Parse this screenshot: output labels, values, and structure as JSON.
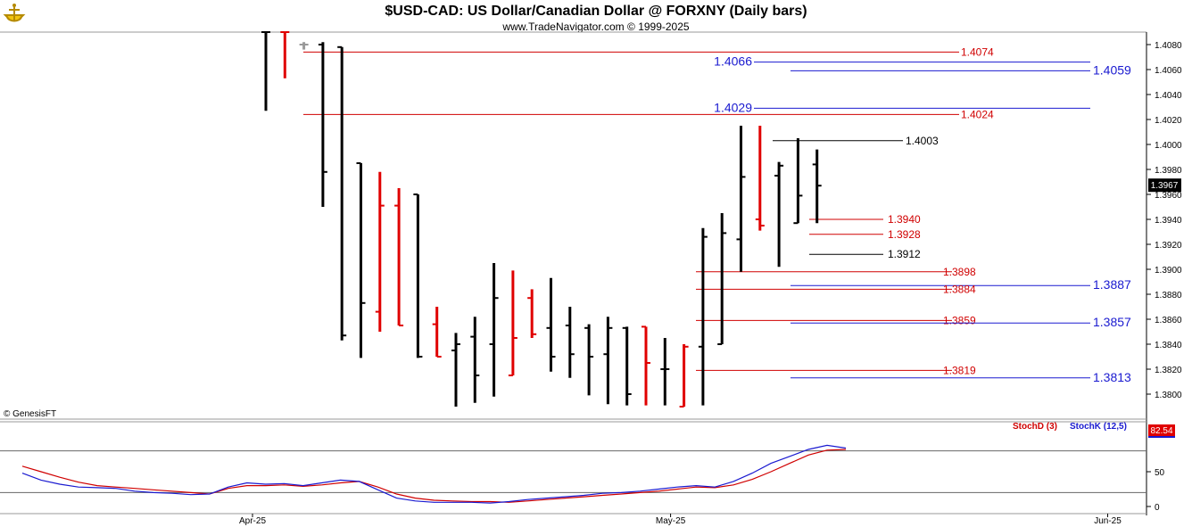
{
  "header": {
    "title": "$USD-CAD:  US Dollar/Canadian Dollar @ FORXNY  (Daily bars)",
    "subtitle": "www.TradeNavigator.com © 1999-2025",
    "logo_icon": "ship-icon"
  },
  "copyright": "© GenesisFT",
  "colors": {
    "up_bar": "#000000",
    "down_bar": "#e00000",
    "red_level": "#d00000",
    "blue_level": "#1a1ad0",
    "stoch_d": "#d00000",
    "stoch_k": "#1a1ad0",
    "price_box": "#000000",
    "stoch_box": "#e00000"
  },
  "chart_data": [
    {
      "type": "ohlc",
      "name": "price",
      "ylim": [
        1.378,
        1.409
      ],
      "y_ticks": [
        "1.4080",
        "1.4060",
        "1.4040",
        "1.4020",
        "1.4000",
        "1.3980",
        "1.3960",
        "1.3940",
        "1.3920",
        "1.3900",
        "1.3880",
        "1.3860",
        "1.3840",
        "1.3820",
        "1.3800"
      ],
      "x_ticks": [
        {
          "label": "Apr-25",
          "bar": 1
        },
        {
          "label": "May-25",
          "bar": 23
        },
        {
          "label": "Jun-25",
          "bar": 46
        }
      ],
      "last_price": "1.3967",
      "bars": [
        {
          "o": 1.41,
          "h": 1.41,
          "l": 1.4027,
          "c": 1.41,
          "color": "up"
        },
        {
          "o": 1.41,
          "h": 1.41,
          "l": 1.4053,
          "c": 1.41,
          "color": "down"
        },
        {
          "o": 1.408,
          "h": 1.4082,
          "l": 1.4076,
          "c": 1.408,
          "color": "gray"
        },
        {
          "o": 1.408,
          "h": 1.4082,
          "l": 1.395,
          "c": 1.3978,
          "color": "up"
        },
        {
          "o": 1.4078,
          "h": 1.4078,
          "l": 1.3843,
          "c": 1.3847,
          "color": "up"
        },
        {
          "o": 1.3985,
          "h": 1.3985,
          "l": 1.3829,
          "c": 1.3873,
          "color": "up"
        },
        {
          "o": 1.3866,
          "h": 1.3978,
          "l": 1.385,
          "c": 1.3951,
          "color": "down"
        },
        {
          "o": 1.3951,
          "h": 1.3965,
          "l": 1.3855,
          "c": 1.3855,
          "color": "down"
        },
        {
          "o": 1.396,
          "h": 1.396,
          "l": 1.3829,
          "c": 1.383,
          "color": "up"
        },
        {
          "o": 1.3856,
          "h": 1.387,
          "l": 1.383,
          "c": 1.383,
          "color": "down"
        },
        {
          "o": 1.3835,
          "h": 1.3849,
          "l": 1.379,
          "c": 1.384,
          "color": "up"
        },
        {
          "o": 1.3846,
          "h": 1.3862,
          "l": 1.3793,
          "c": 1.3815,
          "color": "up"
        },
        {
          "o": 1.384,
          "h": 1.3905,
          "l": 1.3798,
          "c": 1.3877,
          "color": "up"
        },
        {
          "o": 1.3815,
          "h": 1.3899,
          "l": 1.3815,
          "c": 1.3845,
          "color": "down"
        },
        {
          "o": 1.3877,
          "h": 1.3884,
          "l": 1.3845,
          "c": 1.3848,
          "color": "down"
        },
        {
          "o": 1.3853,
          "h": 1.3893,
          "l": 1.3818,
          "c": 1.383,
          "color": "up"
        },
        {
          "o": 1.3855,
          "h": 1.387,
          "l": 1.3813,
          "c": 1.3832,
          "color": "up"
        },
        {
          "o": 1.3853,
          "h": 1.3856,
          "l": 1.3799,
          "c": 1.383,
          "color": "up"
        },
        {
          "o": 1.3832,
          "h": 1.3862,
          "l": 1.3792,
          "c": 1.3853,
          "color": "up"
        },
        {
          "o": 1.3853,
          "h": 1.3854,
          "l": 1.3791,
          "c": 1.38,
          "color": "up"
        },
        {
          "o": 1.3854,
          "h": 1.3854,
          "l": 1.3791,
          "c": 1.3825,
          "color": "down"
        },
        {
          "o": 1.382,
          "h": 1.3845,
          "l": 1.3791,
          "c": 1.382,
          "color": "up"
        },
        {
          "o": 1.379,
          "h": 1.384,
          "l": 1.379,
          "c": 1.3838,
          "color": "down"
        },
        {
          "o": 1.3838,
          "h": 1.3933,
          "l": 1.3791,
          "c": 1.3926,
          "color": "up"
        },
        {
          "o": 1.384,
          "h": 1.3945,
          "l": 1.384,
          "c": 1.3929,
          "color": "up"
        },
        {
          "o": 1.3924,
          "h": 1.4015,
          "l": 1.3898,
          "c": 1.3974,
          "color": "up"
        },
        {
          "o": 1.394,
          "h": 1.4015,
          "l": 1.3931,
          "c": 1.3935,
          "color": "down"
        },
        {
          "o": 1.3975,
          "h": 1.3986,
          "l": 1.3902,
          "c": 1.3983,
          "color": "up"
        },
        {
          "o": 1.3937,
          "h": 1.4005,
          "l": 1.3937,
          "c": 1.3959,
          "color": "up"
        },
        {
          "o": 1.3984,
          "h": 1.3996,
          "l": 1.3937,
          "c": 1.3967,
          "color": "up"
        }
      ],
      "levels": [
        {
          "value": "1.4074",
          "color": "red",
          "side": "left"
        },
        {
          "value": "1.4066",
          "color": "blue",
          "side": "left"
        },
        {
          "value": "1.4059",
          "color": "blue",
          "side": "right"
        },
        {
          "value": "1.4029",
          "color": "blue",
          "side": "left"
        },
        {
          "value": "1.4024",
          "color": "red",
          "side": "left"
        },
        {
          "value": "1.4003",
          "color": "black",
          "side": "short"
        },
        {
          "value": "1.3940",
          "color": "red",
          "side": "short"
        },
        {
          "value": "1.3928",
          "color": "red",
          "side": "short"
        },
        {
          "value": "1.3912",
          "color": "black",
          "side": "short"
        },
        {
          "value": "1.3898",
          "color": "red",
          "side": "left"
        },
        {
          "value": "1.3887",
          "color": "blue",
          "side": "right"
        },
        {
          "value": "1.3884",
          "color": "red",
          "side": "left"
        },
        {
          "value": "1.3859",
          "color": "red",
          "side": "left"
        },
        {
          "value": "1.3857",
          "color": "blue",
          "side": "right"
        },
        {
          "value": "1.3819",
          "color": "red",
          "side": "left"
        },
        {
          "value": "1.3813",
          "color": "blue",
          "side": "right"
        }
      ]
    },
    {
      "type": "line",
      "name": "stochastic",
      "ylim": [
        0,
        100
      ],
      "y_ticks": [
        "50",
        "0"
      ],
      "legend": [
        "StochD (3)",
        "StochK (12,5)"
      ],
      "last_value": "82.54",
      "series": [
        {
          "name": "StochD (3)",
          "color": "red",
          "values": [
            58,
            50,
            42,
            35,
            30,
            28,
            26,
            24,
            22,
            20,
            18,
            26,
            30,
            30,
            31,
            29,
            31,
            34,
            36,
            28,
            18,
            12,
            9,
            8,
            7,
            7,
            6,
            8,
            10,
            12,
            14,
            16,
            18,
            20,
            22,
            25,
            28,
            27,
            31,
            39,
            50,
            62,
            74,
            81,
            82
          ]
        },
        {
          "name": "StochK (12,5)",
          "color": "blue",
          "values": [
            48,
            38,
            32,
            28,
            27,
            26,
            22,
            20,
            19,
            17,
            18,
            28,
            34,
            32,
            33,
            30,
            34,
            38,
            36,
            24,
            12,
            8,
            6,
            6,
            6,
            5,
            7,
            10,
            12,
            14,
            16,
            19,
            20,
            22,
            25,
            28,
            30,
            28,
            36,
            48,
            62,
            72,
            82,
            88,
            84
          ]
        }
      ]
    }
  ]
}
